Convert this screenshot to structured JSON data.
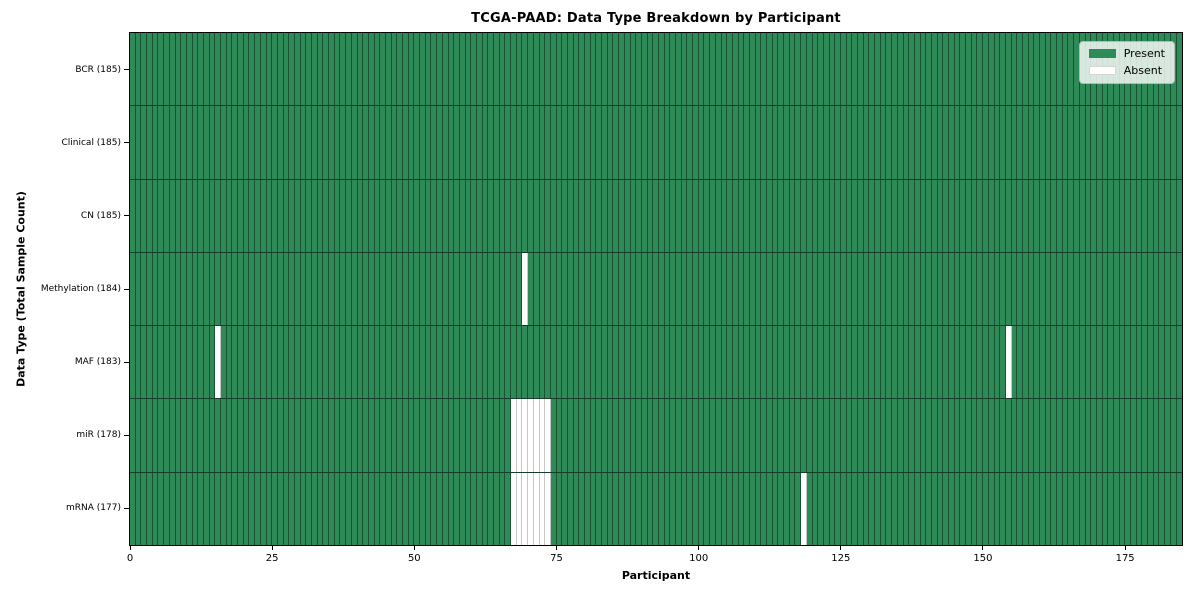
{
  "chart_data": {
    "type": "heatmap",
    "title": "TCGA-PAAD: Data Type Breakdown by Participant",
    "xlabel": "Participant",
    "ylabel": "Data Type (Total Sample Count)",
    "n_participants": 185,
    "x_axis": {
      "min": 0,
      "max": 185,
      "ticks": [
        0,
        25,
        50,
        75,
        100,
        125,
        150,
        175
      ]
    },
    "rows": [
      {
        "label": "BCR (185)",
        "total": 185,
        "absent": []
      },
      {
        "label": "Clinical (185)",
        "total": 185,
        "absent": []
      },
      {
        "label": "CN (185)",
        "total": 185,
        "absent": []
      },
      {
        "label": "Methylation (184)",
        "total": 184,
        "absent": [
          69
        ]
      },
      {
        "label": "MAF (183)",
        "total": 183,
        "absent": [
          15,
          154
        ]
      },
      {
        "label": "miR (178)",
        "total": 178,
        "absent": [
          67,
          68,
          69,
          70,
          71,
          72,
          73
        ]
      },
      {
        "label": "mRNA (177)",
        "total": 177,
        "absent": [
          67,
          68,
          69,
          70,
          71,
          72,
          73,
          118
        ]
      }
    ],
    "legend": [
      {
        "label": "Present",
        "color": "#2e8b57"
      },
      {
        "label": "Absent",
        "color": "#ffffff"
      }
    ],
    "legend_position": "upper right",
    "grid": false,
    "colors": {
      "present": "#2e8b57",
      "absent": "#ffffff",
      "cell_edge": "rgba(5,38,20,0.55)",
      "absent_cell_edge": "#c7c7c7",
      "row_divider": "rgba(0,0,0,0.55)",
      "spine": "#000000",
      "legend_bg": "rgba(252,253,252,0.82)",
      "legend_border": "#b3bcb3"
    }
  }
}
